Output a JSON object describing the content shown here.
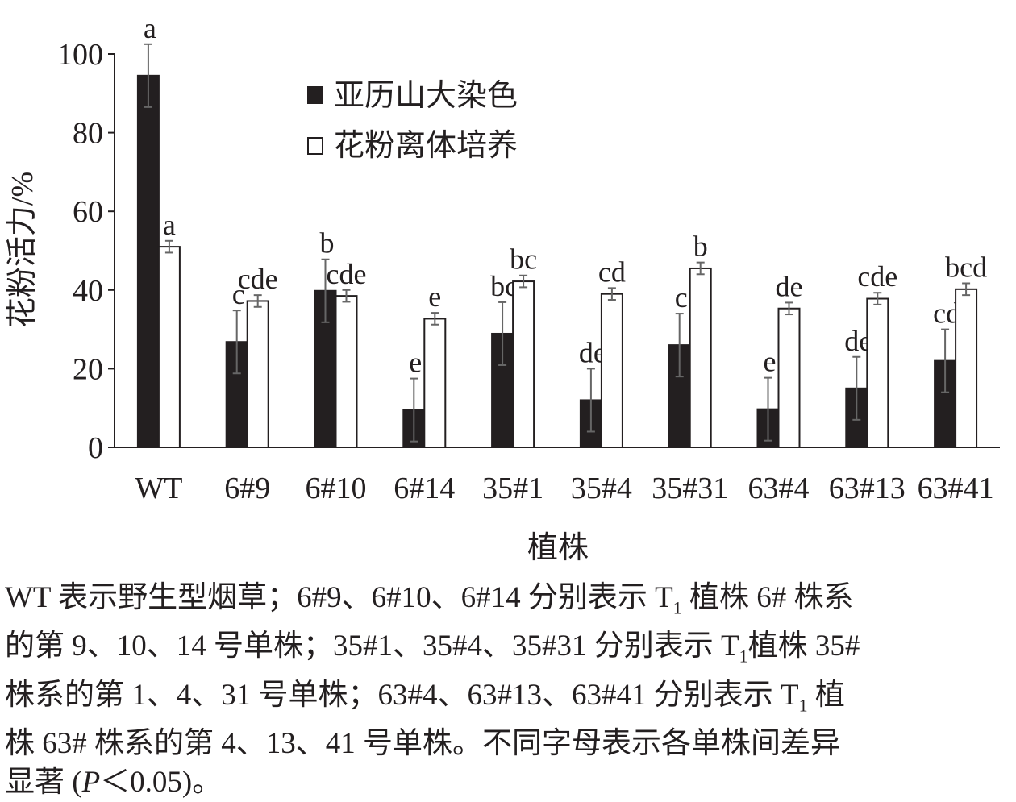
{
  "chart_data": {
    "type": "bar",
    "xlabel": "植株",
    "ylabel": "花粉活力/%",
    "ylim": [
      0,
      100
    ],
    "yticks": [
      0,
      20,
      40,
      60,
      80,
      100
    ],
    "categories": [
      "WT",
      "6#9",
      "6#10",
      "6#14",
      "35#1",
      "35#4",
      "35#31",
      "63#4",
      "63#13",
      "63#41"
    ],
    "legend_position": "top-center",
    "series": [
      {
        "name": "亚历山大染色",
        "fill": "#231f20",
        "values": [
          94.5,
          26.8,
          39.8,
          9.5,
          28.9,
          12.0,
          26.0,
          9.7,
          15.0,
          22.0
        ],
        "errors": [
          8.0,
          8.0,
          8.0,
          8.0,
          8.0,
          8.0,
          8.0,
          8.0,
          8.0,
          8.0
        ],
        "labels": [
          "a",
          "c",
          "b",
          "e",
          "bc",
          "de",
          "c",
          "e",
          "de",
          "cd"
        ]
      },
      {
        "name": "花粉离体培养",
        "fill": "#ffffff",
        "values": [
          51.0,
          37.2,
          38.5,
          32.7,
          42.2,
          39.0,
          45.5,
          35.3,
          37.8,
          40.2
        ],
        "errors": [
          1.5,
          1.5,
          1.5,
          1.5,
          1.5,
          1.5,
          1.5,
          1.5,
          1.5,
          1.5
        ],
        "labels": [
          "a",
          "cde",
          "cde",
          "e",
          "bc",
          "cd",
          "b",
          "de",
          "cde",
          "bcd"
        ]
      }
    ]
  },
  "caption": {
    "line1_a": "WT 表示野生型烟草；6#9、6#10、6#14 分别表示 T",
    "line1_sub": "1",
    "line1_b": " 植株 6# 株系",
    "line2_a": "的第 9、10、14 号单株；35#1、35#4、35#31 分别表示 T",
    "line2_sub": "1",
    "line2_b": "植株 35#",
    "line3_a": "株系的第 1、4、31 号单株；63#4、63#13、63#41 分别表示 T",
    "line3_sub": "1",
    "line3_b": " 植",
    "line4": "株 63# 株系的第 4、13、41 号单株。不同字母表示各单株间差异",
    "line5_a": "显著 (",
    "line5_italic": "P",
    "line5_b": "＜0.05)。"
  }
}
